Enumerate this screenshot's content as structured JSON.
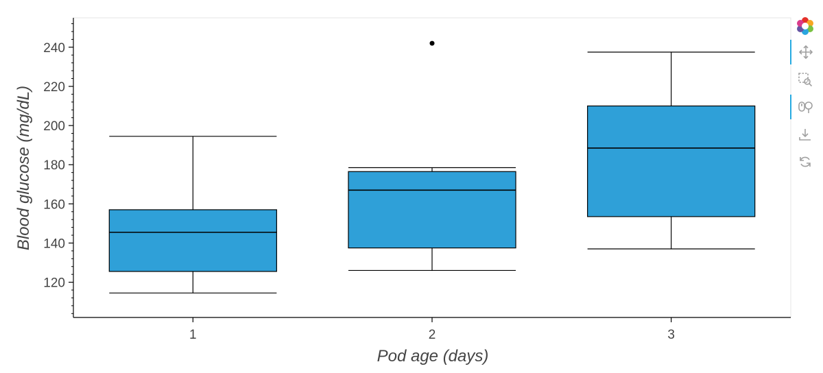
{
  "chart_data": {
    "type": "boxplot",
    "xlabel": "Pod age (days)",
    "ylabel": "Blood glucose (mg/dL)",
    "categories": [
      "1",
      "2",
      "3"
    ],
    "ylim": [
      102,
      255
    ],
    "y_ticks": [
      120,
      140,
      160,
      180,
      200,
      220,
      240
    ],
    "grid": false,
    "box_color": "#2fa0d8",
    "series": [
      {
        "category": "1",
        "whisker_low": 114.5,
        "q1": 125.5,
        "median": 145.5,
        "q3": 157.0,
        "whisker_high": 194.5,
        "outliers": []
      },
      {
        "category": "2",
        "whisker_low": 126.0,
        "q1": 137.5,
        "median": 167.0,
        "q3": 176.5,
        "whisker_high": 178.5,
        "outliers": [
          242.0
        ]
      },
      {
        "category": "3",
        "whisker_low": 137.0,
        "q1": 153.5,
        "median": 188.5,
        "q3": 210.0,
        "whisker_high": 237.5,
        "outliers": []
      }
    ]
  },
  "toolbar": {
    "tools": [
      {
        "name": "bokeh-logo-icon",
        "active": false
      },
      {
        "name": "pan-icon",
        "active": true
      },
      {
        "name": "box-zoom-icon",
        "active": false
      },
      {
        "name": "wheel-zoom-icon",
        "active": true
      },
      {
        "name": "save-icon",
        "active": false
      },
      {
        "name": "reset-icon",
        "active": false
      }
    ]
  }
}
